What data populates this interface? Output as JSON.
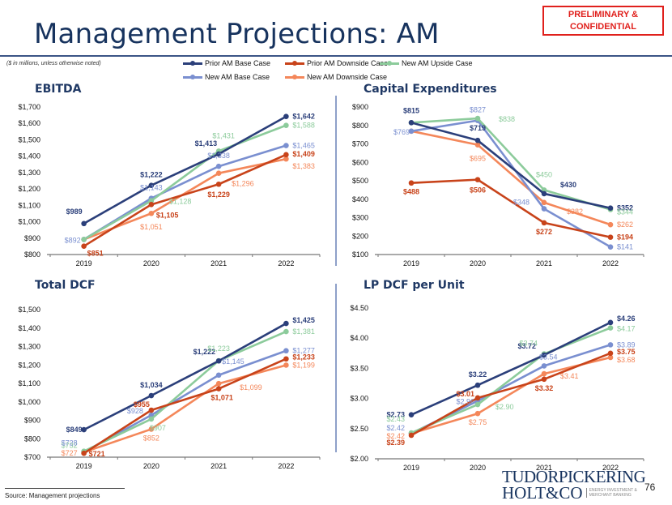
{
  "header": {
    "title": "Management Projections: AM",
    "confidential_label_line1": "PRELIMINARY &",
    "confidential_label_line2": "CONFIDENTIAL",
    "units_note": "($ in millions, unless otherwise noted)"
  },
  "series_styles": [
    {
      "name": "Prior AM Base Case",
      "color": "#2b3f7a"
    },
    {
      "name": "Prior AM Downside Case",
      "color": "#c8431a"
    },
    {
      "name": "New AM Upside Case",
      "color": "#8ccb9b"
    },
    {
      "name": "New AM Base Case",
      "color": "#7a8fd0"
    },
    {
      "name": "New AM Downside Case",
      "color": "#f4875a"
    }
  ],
  "chart_data": [
    {
      "type": "line",
      "title": "EBITDA",
      "categories": [
        "2019",
        "2020",
        "2021",
        "2022"
      ],
      "ylim": [
        800,
        1700
      ],
      "yticks": [
        800,
        900,
        1000,
        1100,
        1200,
        1300,
        1400,
        1500,
        1600,
        1700
      ],
      "yformat": "int",
      "xlabel": "",
      "ylabel": "",
      "legend": "top",
      "grid": false,
      "series": [
        {
          "name": "Prior AM Base Case",
          "values": [
            989,
            1222,
            1413,
            1642
          ]
        },
        {
          "name": "Prior AM Downside Case",
          "values": [
            851,
            1105,
            1229,
            1409
          ]
        },
        {
          "name": "New AM Upside Case",
          "values": [
            null,
            1128,
            1431,
            1588
          ],
          "first_value": 892
        },
        {
          "name": "New AM Base Case",
          "values": [
            892,
            1143,
            1338,
            1465
          ]
        },
        {
          "name": "New AM Downside Case",
          "values": [
            892,
            1051,
            1296,
            1383
          ]
        }
      ],
      "labels": [
        [
          "$989",
          "$1,222",
          "$1,413",
          "$1,642"
        ],
        [
          "$851",
          "$1,105",
          "$1,229",
          "$1,409"
        ],
        [
          "",
          "$1,128",
          "$1,431",
          "$1,588"
        ],
        [
          "$892",
          "$1,143",
          "$1,338",
          "$1,465"
        ],
        [
          "",
          "$1,051",
          "$1,296",
          "$1,383"
        ]
      ]
    },
    {
      "type": "line",
      "title": "Capital Expenditures",
      "categories": [
        "2019",
        "2020",
        "2021",
        "2022"
      ],
      "ylim": [
        100,
        900
      ],
      "yticks": [
        100,
        200,
        300,
        400,
        500,
        600,
        700,
        800,
        900
      ],
      "yformat": "int",
      "xlabel": "",
      "ylabel": "",
      "legend": "top",
      "grid": false,
      "series": [
        {
          "name": "Prior AM Base Case",
          "values": [
            815,
            719,
            430,
            352
          ]
        },
        {
          "name": "Prior AM Downside Case",
          "values": [
            488,
            506,
            272,
            194
          ]
        },
        {
          "name": "New AM Upside Case",
          "values": [
            815,
            838,
            450,
            344
          ]
        },
        {
          "name": "New AM Base Case",
          "values": [
            769,
            827,
            348,
            141
          ]
        },
        {
          "name": "New AM Downside Case",
          "values": [
            769,
            695,
            382,
            262
          ]
        }
      ],
      "labels": [
        [
          "$815",
          "$719",
          "$430",
          "$352"
        ],
        [
          "$488",
          "$506",
          "$272",
          "$194"
        ],
        [
          "",
          "$838",
          "$450",
          "$344"
        ],
        [
          "$769",
          "$827",
          "$348",
          "$141"
        ],
        [
          "",
          "$695",
          "$382",
          "$262"
        ]
      ]
    },
    {
      "type": "line",
      "title": "Total DCF",
      "categories": [
        "2019",
        "2020",
        "2021",
        "2022"
      ],
      "ylim": [
        700,
        1500
      ],
      "yticks": [
        700,
        800,
        900,
        1000,
        1100,
        1200,
        1300,
        1400,
        1500
      ],
      "yformat": "int",
      "xlabel": "",
      "ylabel": "",
      "legend": "top",
      "grid": false,
      "series": [
        {
          "name": "Prior AM Base Case",
          "values": [
            849,
            1034,
            1222,
            1425
          ]
        },
        {
          "name": "Prior AM Downside Case",
          "values": [
            721,
            955,
            1071,
            1233
          ]
        },
        {
          "name": "New AM Upside Case",
          "values": [
            732,
            907,
            1223,
            1381
          ]
        },
        {
          "name": "New AM Base Case",
          "values": [
            728,
            928,
            1145,
            1277
          ]
        },
        {
          "name": "New AM Downside Case",
          "values": [
            727,
            852,
            1099,
            1199
          ]
        }
      ],
      "labels": [
        [
          "$849",
          "$1,034",
          "$1,222",
          "$1,425"
        ],
        [
          "$721",
          "$955",
          "$1,071",
          "$1,233"
        ],
        [
          "$732",
          "$907",
          "$1,223",
          "$1,381"
        ],
        [
          "$728",
          "$928",
          "$1,145",
          "$1,277"
        ],
        [
          "$727",
          "$852",
          "$1,099",
          "$1,199"
        ]
      ]
    },
    {
      "type": "line",
      "title": "LP DCF per Unit",
      "categories": [
        "2019",
        "2020",
        "2021",
        "2022"
      ],
      "ylim": [
        2.0,
        4.5
      ],
      "yticks": [
        2.0,
        2.5,
        3.0,
        3.5,
        4.0,
        4.5
      ],
      "yformat": "dec2",
      "xlabel": "",
      "ylabel": "",
      "legend": "top",
      "grid": false,
      "series": [
        {
          "name": "Prior AM Base Case",
          "values": [
            2.73,
            3.22,
            3.72,
            4.26
          ]
        },
        {
          "name": "Prior AM Downside Case",
          "values": [
            2.39,
            3.01,
            3.32,
            3.75
          ]
        },
        {
          "name": "New AM Upside Case",
          "values": [
            2.43,
            2.9,
            3.74,
            4.17
          ]
        },
        {
          "name": "New AM Base Case",
          "values": [
            2.42,
            2.96,
            3.54,
            3.89
          ]
        },
        {
          "name": "New AM Downside Case",
          "values": [
            2.42,
            2.75,
            3.41,
            3.68
          ]
        }
      ],
      "labels": [
        [
          "$2.73",
          "$3.22",
          "$3.72",
          "$4.26"
        ],
        [
          "$2.39",
          "$3.01",
          "$3.32",
          "$3.75"
        ],
        [
          "$2.43",
          "$2.90",
          "$3.74",
          "$4.17"
        ],
        [
          "$2.42",
          "$2.96",
          "$3.54",
          "$3.89"
        ],
        [
          "$2.42",
          "$2.75",
          "$3.41",
          "$3.68"
        ]
      ]
    }
  ],
  "footer": {
    "source": "Source: Management projections",
    "logo_line1_bold": "TUDOR",
    "logo_line1_thin": "PICKERING",
    "logo_line2": "HOLT&CO",
    "logo_tag1": "ENERGY INVESTMENT &",
    "logo_tag2": "MERCHANT BANKING",
    "page_number": "76"
  }
}
